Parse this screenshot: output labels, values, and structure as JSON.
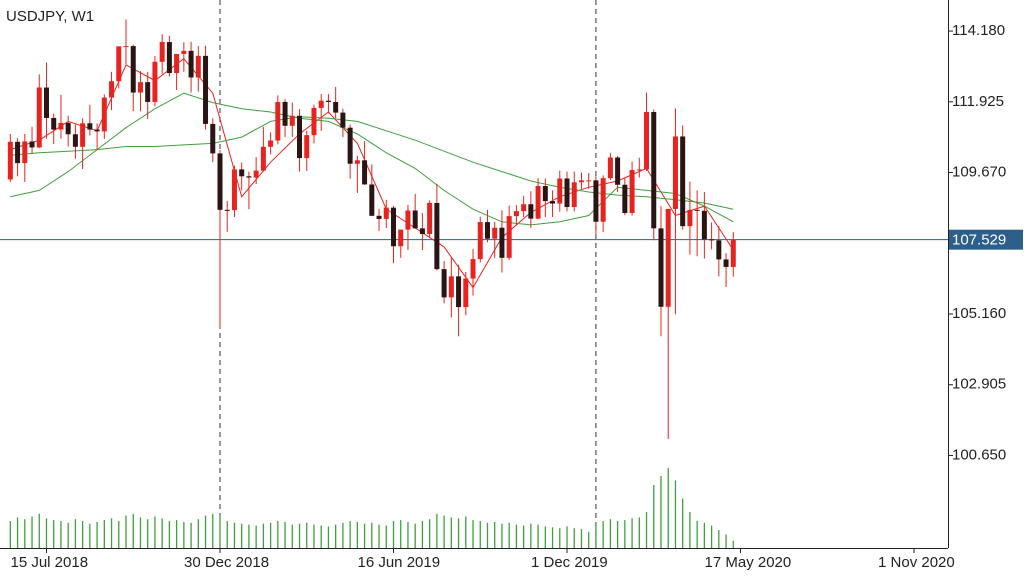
{
  "chart_data": {
    "type": "candlestick",
    "title": "USDJPY, W1",
    "categories": [
      null,
      null,
      null,
      null,
      null,
      null,
      null,
      null,
      null,
      null,
      null,
      null,
      null,
      null,
      null,
      null,
      null,
      null,
      null,
      null,
      null,
      null,
      null,
      null,
      null,
      null,
      null,
      null,
      null,
      null,
      null,
      null,
      null,
      null,
      null,
      null,
      null,
      null,
      null,
      null,
      null,
      null,
      null,
      null,
      null,
      null,
      null,
      null,
      null,
      null,
      null,
      null,
      null,
      null,
      null,
      null,
      null,
      null,
      null,
      null,
      null,
      null,
      null,
      null,
      null,
      null,
      null,
      null,
      null,
      null,
      null,
      null,
      null,
      null,
      null,
      null,
      null,
      null,
      null,
      null,
      null,
      null,
      null,
      null,
      null,
      null,
      null,
      null,
      null,
      null,
      null,
      null,
      null,
      null,
      null,
      null,
      null,
      null,
      null,
      null,
      null
    ],
    "open": [
      109.45,
      110.65,
      109.97,
      110.66,
      110.47,
      112.38,
      111.41,
      111.04,
      111.25,
      110.89,
      110.49,
      111.24,
      111.04,
      110.98,
      112.06,
      112.58,
      113.69,
      113.7,
      112.22,
      112.55,
      111.92,
      113.2,
      113.83,
      112.84,
      113.45,
      113.55,
      112.7,
      113.39,
      111.22,
      110.28,
      108.48,
      108.47,
      109.77,
      109.55,
      109.51,
      109.73,
      110.49,
      110.69,
      111.92,
      111.16,
      111.48,
      110.13,
      110.86,
      111.73,
      111.96,
      111.92,
      111.58,
      111.1,
      109.95,
      110.06,
      109.29,
      108.29,
      108.19,
      108.55,
      107.32,
      107.85,
      108.46,
      107.89,
      107.71,
      108.7,
      106.59,
      105.69,
      106.36,
      105.38,
      106.29,
      106.91,
      108.09,
      107.56,
      107.91,
      106.95,
      108.28,
      108.44,
      108.66,
      108.2,
      109.24,
      108.76,
      108.68,
      109.48,
      108.57,
      109.36,
      109.42,
      109.42,
      108.1,
      109.49,
      110.15,
      109.28,
      108.38,
      109.75,
      109.77,
      111.6,
      107.89,
      105.39,
      108.51,
      110.82,
      107.96,
      108.48,
      108.45,
      107.54,
      107.51,
      106.9,
      106.66
    ],
    "high": [
      110.9,
      110.76,
      110.9,
      111.13,
      112.8,
      113.18,
      111.55,
      112.15,
      111.48,
      111.2,
      111.4,
      111.83,
      111.23,
      112.16,
      112.88,
      113.7,
      114.55,
      113.75,
      112.9,
      112.88,
      113.38,
      114.08,
      114.03,
      113.3,
      113.82,
      113.84,
      113.7,
      113.71,
      111.4,
      110.39,
      108.76,
      109.89,
      109.99,
      109.7,
      110.16,
      111.13,
      110.95,
      112.13,
      112.0,
      111.9,
      111.69,
      111.0,
      111.83,
      112.17,
      112.17,
      112.4,
      111.7,
      111.2,
      110.2,
      110.67,
      109.93,
      108.5,
      108.8,
      108.6,
      107.85,
      108.64,
      108.99,
      108.38,
      108.78,
      109.31,
      106.85,
      106.98,
      106.73,
      106.5,
      107.23,
      108.26,
      108.48,
      108.1,
      108.47,
      108.62,
      108.63,
      108.93,
      109.07,
      109.49,
      109.48,
      109.1,
      109.73,
      109.7,
      109.7,
      109.67,
      109.65,
      109.55,
      109.58,
      110.29,
      110.2,
      109.49,
      110.02,
      110.14,
      112.22,
      111.68,
      108.6,
      108.36,
      111.71,
      111.17,
      109.38,
      109.1,
      109.05,
      108.08,
      107.97,
      107.1,
      107.77
    ],
    "low": [
      109.37,
      109.55,
      109.37,
      110.27,
      110.45,
      110.75,
      110.58,
      110.75,
      110.5,
      110.11,
      109.78,
      110.85,
      110.38,
      110.74,
      111.66,
      112.35,
      113.12,
      111.63,
      111.62,
      111.38,
      111.78,
      112.82,
      112.73,
      112.3,
      112.88,
      112.22,
      112.25,
      111.04,
      110.0,
      104.7,
      107.78,
      108.25,
      109.1,
      108.5,
      109.3,
      109.7,
      110.25,
      110.57,
      110.8,
      110.8,
      109.7,
      109.72,
      110.6,
      111.0,
      111.55,
      111.4,
      110.8,
      109.47,
      109.02,
      109.28,
      108.28,
      107.81,
      107.9,
      106.78,
      106.95,
      107.2,
      107.88,
      107.2,
      107.6,
      106.55,
      105.5,
      105.05,
      104.45,
      105.12,
      105.75,
      106.8,
      107.45,
      106.95,
      106.48,
      106.88,
      108.0,
      108.25,
      107.9,
      108.18,
      108.25,
      108.25,
      108.42,
      108.43,
      108.43,
      109.15,
      109.15,
      107.65,
      107.77,
      109.43,
      109.05,
      108.31,
      108.3,
      109.51,
      109.72,
      107.51,
      104.45,
      101.18,
      105.15,
      107.85,
      107.05,
      107.0,
      106.93,
      107.22,
      106.36,
      106.02,
      106.35
    ],
    "close": [
      110.65,
      109.97,
      110.66,
      110.47,
      112.38,
      111.41,
      111.04,
      111.25,
      110.89,
      110.49,
      111.24,
      111.04,
      110.98,
      112.06,
      112.58,
      113.69,
      113.7,
      112.22,
      112.55,
      111.92,
      113.2,
      113.83,
      112.84,
      113.45,
      113.55,
      112.7,
      113.39,
      111.22,
      110.28,
      108.48,
      108.47,
      109.77,
      109.55,
      109.51,
      109.73,
      110.49,
      110.69,
      111.92,
      111.16,
      111.48,
      110.13,
      110.86,
      111.73,
      111.96,
      111.92,
      111.58,
      111.1,
      109.95,
      110.06,
      109.29,
      108.29,
      108.19,
      108.55,
      107.32,
      107.85,
      108.46,
      107.89,
      107.71,
      108.7,
      106.59,
      105.69,
      106.36,
      105.38,
      106.29,
      106.91,
      108.09,
      107.56,
      107.91,
      106.95,
      108.28,
      108.44,
      108.66,
      108.2,
      109.24,
      108.76,
      108.68,
      109.48,
      108.57,
      109.36,
      109.42,
      109.42,
      108.1,
      109.49,
      110.15,
      109.28,
      108.38,
      109.75,
      109.77,
      111.6,
      107.89,
      105.39,
      108.51,
      110.82,
      107.96,
      108.48,
      108.45,
      107.54,
      107.51,
      106.9,
      106.66,
      107.529
    ],
    "volume": [
      30,
      34,
      32,
      35,
      38,
      33,
      31,
      30,
      28,
      32,
      30,
      27,
      29,
      31,
      33,
      30,
      36,
      38,
      34,
      32,
      35,
      33,
      30,
      31,
      29,
      28,
      32,
      36,
      38,
      36,
      30,
      28,
      27,
      26,
      25,
      27,
      28,
      30,
      29,
      26,
      27,
      28,
      26,
      25,
      24,
      26,
      28,
      30,
      29,
      27,
      28,
      26,
      25,
      30,
      31,
      29,
      27,
      30,
      32,
      38,
      36,
      34,
      33,
      35,
      31,
      30,
      28,
      29,
      27,
      28,
      26,
      25,
      27,
      26,
      24,
      23,
      22,
      24,
      22,
      21,
      18,
      28,
      30,
      32,
      30,
      31,
      33,
      34,
      40,
      70,
      80,
      89,
      75,
      55,
      40,
      30,
      28,
      25,
      20,
      15,
      8
    ],
    "up_color": "#e8231f",
    "down_color": "#2b1414",
    "volume_color": "#3fa03f",
    "volume_lim": [
      0,
      100
    ],
    "moving_averages": [
      {
        "color": "#e8231f",
        "x": [
          0,
          4,
          8,
          12,
          16,
          20,
          24,
          28,
          32,
          36,
          40,
          44,
          48,
          52,
          56,
          60,
          64,
          68,
          72,
          76,
          80,
          84,
          88,
          92,
          96,
          100
        ],
        "values": [
          110.4,
          110.7,
          111.3,
          111.0,
          113.1,
          112.6,
          113.3,
          112.2,
          108.9,
          110.0,
          110.9,
          111.6,
          110.6,
          108.5,
          107.9,
          107.3,
          106.0,
          107.6,
          108.4,
          108.9,
          109.2,
          109.4,
          109.8,
          108.3,
          108.6,
          107.2
        ]
      },
      {
        "color": "#3fa03f",
        "x": [
          0,
          4,
          8,
          12,
          16,
          20,
          24,
          28,
          32,
          36,
          40,
          44,
          48,
          52,
          56,
          60,
          64,
          68,
          72,
          76,
          80,
          84,
          88,
          92,
          96,
          100
        ],
        "values": [
          108.9,
          109.1,
          109.7,
          110.4,
          111.1,
          111.7,
          112.2,
          111.9,
          111.7,
          111.6,
          111.4,
          111.3,
          110.9,
          110.3,
          109.8,
          109.1,
          108.5,
          108.1,
          108.0,
          108.1,
          108.3,
          109.2,
          109.1,
          109.0,
          108.6,
          108.1
        ]
      },
      {
        "color": "#3fa03f",
        "x": [
          0,
          4,
          8,
          12,
          16,
          20,
          24,
          28,
          32,
          36,
          40,
          44,
          48,
          52,
          56,
          60,
          64,
          68,
          72,
          76,
          80,
          84,
          88,
          92,
          96,
          100
        ],
        "values": [
          110.22,
          110.3,
          110.35,
          110.4,
          110.5,
          110.5,
          110.55,
          110.6,
          110.8,
          111.3,
          111.45,
          111.4,
          111.3,
          111.0,
          110.7,
          110.35,
          110.0,
          109.7,
          109.4,
          109.2,
          109.05,
          108.95,
          108.9,
          108.8,
          108.7,
          108.5
        ]
      }
    ],
    "last_price": 107.529,
    "last_price_color": "#2d5f8b",
    "period_separators": [
      29,
      81
    ],
    "xlim": [
      -1.43,
      129.7
    ],
    "ylim": [
      97.7,
      115.17
    ],
    "yticks": [
      {
        "value": 100.65,
        "label": "100.650"
      },
      102.905,
      {
        "value": 105.16,
        "label": "105.160"
      },
      {
        "value": 109.67,
        "label": "109.670"
      },
      111.925,
      {
        "value": 114.18,
        "label": "114.180"
      }
    ],
    "xticks": [
      {
        "value": 5,
        "label": "15 Jul 2018"
      },
      {
        "value": 29,
        "label": "30 Dec 2018"
      },
      {
        "value": 53,
        "label": "16 Jun 2019"
      },
      {
        "value": 77,
        "label": "1 Dec 2019"
      },
      {
        "value": 101,
        "label": "17 May 2020"
      },
      {
        "value": 125,
        "label": "1 Nov 2020"
      }
    ]
  }
}
